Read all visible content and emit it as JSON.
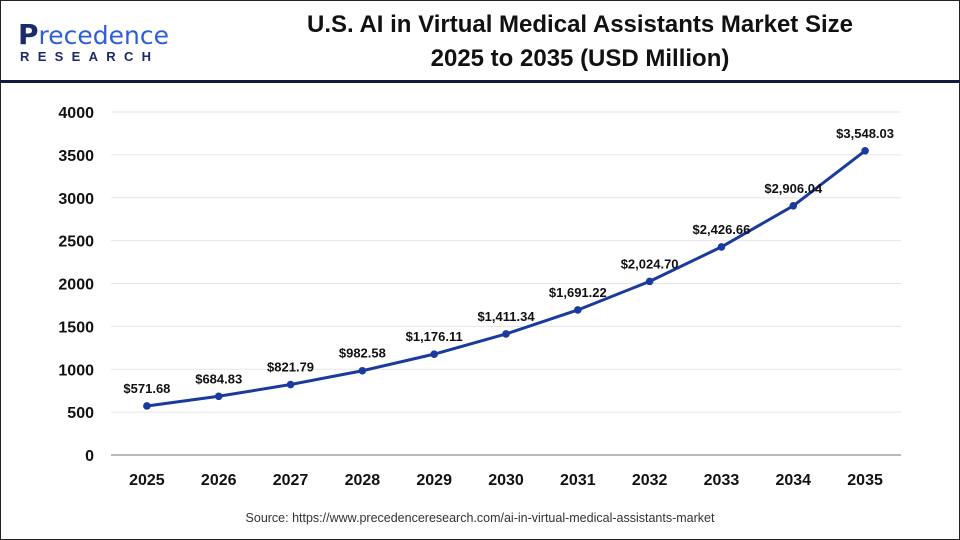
{
  "logo": {
    "text_main": "Precedence",
    "text_sub": "RESEARCH"
  },
  "title": {
    "line1": "U.S. AI in Virtual Medical Assistants Market Size",
    "line2": "2025 to 2035 (USD Million)"
  },
  "source": "Source: https://www.precedenceresearch.com/ai-in-virtual-medical-assistants-market",
  "colors": {
    "line": "#1a3a9c",
    "header_rule": "#0f1a3d",
    "grid": "#e6e6e6"
  },
  "chart_data": {
    "type": "line",
    "title": "U.S. AI in Virtual Medical Assistants Market Size 2025 to 2035 (USD Million)",
    "categories": [
      "2025",
      "2026",
      "2027",
      "2028",
      "2029",
      "2030",
      "2031",
      "2032",
      "2033",
      "2034",
      "2035"
    ],
    "values": [
      571.68,
      684.83,
      821.79,
      982.58,
      1176.11,
      1411.34,
      1691.22,
      2024.7,
      2426.66,
      2906.04,
      3548.03
    ],
    "data_labels": [
      "$571.68",
      "$684.83",
      "$821.79",
      "$982.58",
      "$1,176.11",
      "$1,411.34",
      "$1,691.22",
      "$2,024.70",
      "$2,426.66",
      "$2,906.04",
      "$3,548.03"
    ],
    "yticks": [
      0,
      500,
      1000,
      1500,
      2000,
      2500,
      3000,
      3500,
      4000
    ],
    "ylim": [
      0,
      4000
    ],
    "grid": true,
    "legend": "none",
    "xlabel": "",
    "ylabel": ""
  }
}
